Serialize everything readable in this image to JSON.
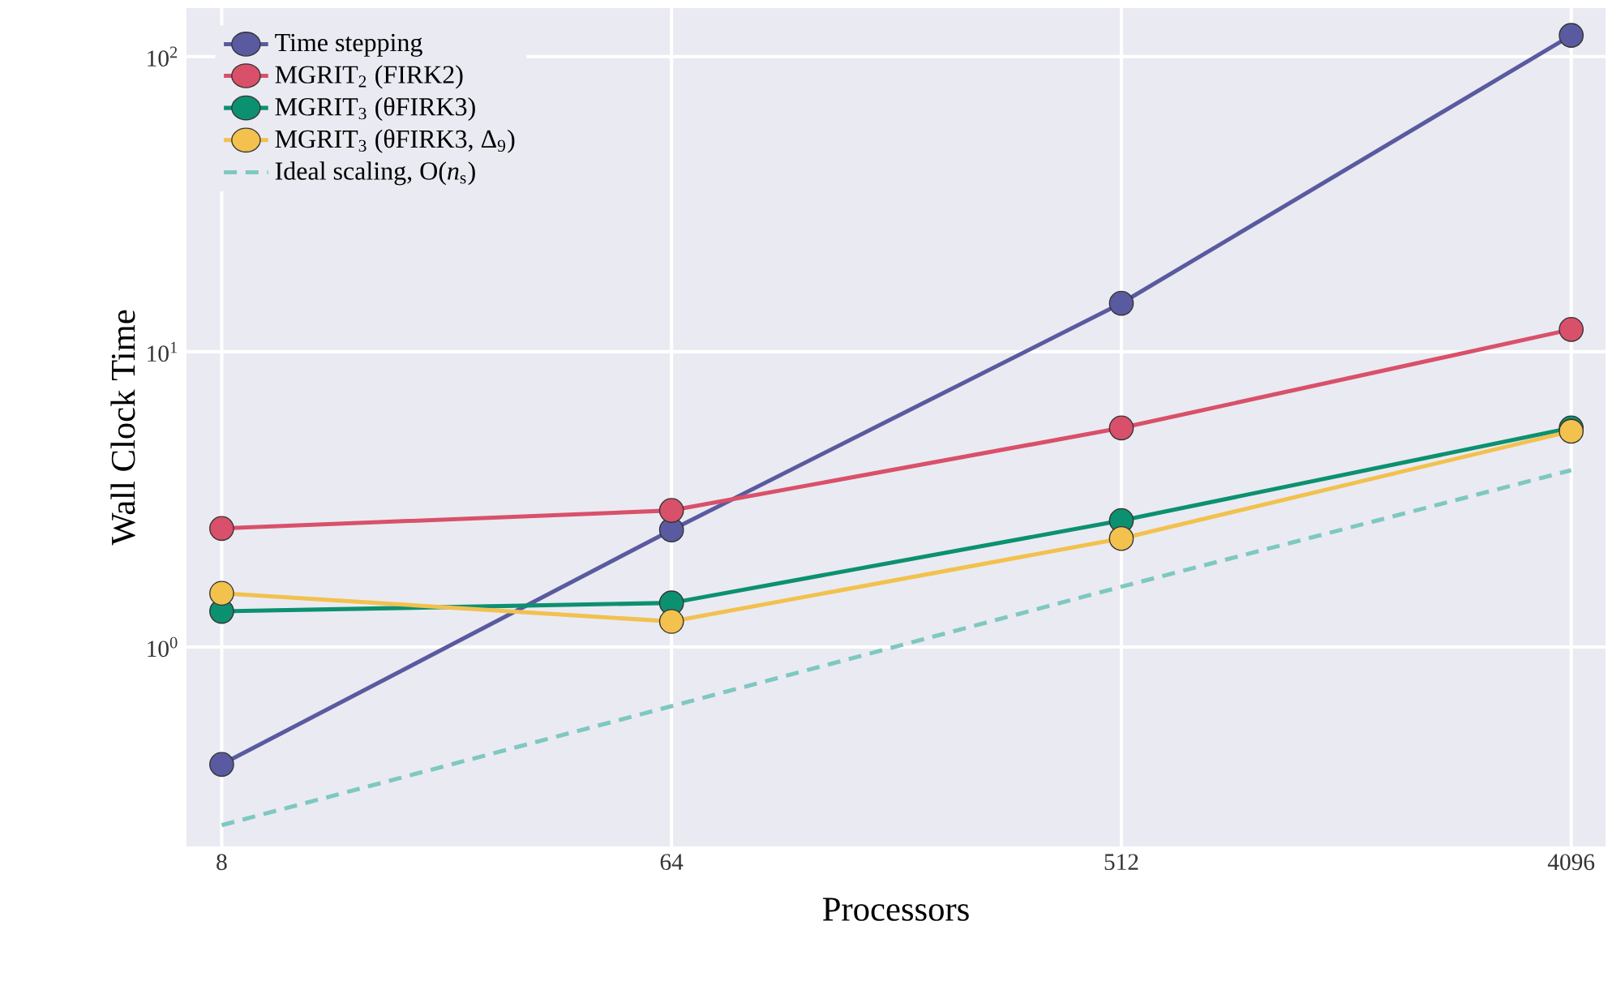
{
  "chart_data": {
    "type": "line",
    "xlabel": "Processors",
    "ylabel": "Wall Clock Time",
    "x": [
      8,
      64,
      512,
      4096
    ],
    "series": [
      {
        "name": "Time stepping",
        "color": "#5a5aa0",
        "values": [
          0.4,
          2.49,
          14.6,
          118
        ]
      },
      {
        "name": "MGRIT$_{2}$ (FIRK2)",
        "color": "#d9506a",
        "values": [
          2.52,
          2.9,
          5.52,
          11.9
        ]
      },
      {
        "name": "MGRIT$_{3}$ (θFIRK3)",
        "color": "#0c9170",
        "values": [
          1.32,
          1.41,
          2.68,
          5.52
        ]
      },
      {
        "name": "MGRIT$_{3}$ (θFIRK3, Δ$_{9}$)",
        "color": "#f2c14e",
        "values": [
          1.52,
          1.22,
          2.33,
          5.38
        ]
      },
      {
        "name": "Ideal scaling, O(*n*$_{s}$)",
        "color": "#7ec8c0",
        "values": [
          0.249,
          0.63,
          1.6,
          3.97
        ],
        "line_style": "dashed",
        "marker": "none"
      }
    ],
    "log": "xy",
    "xlim": [
      6.8,
      4800
    ],
    "ylim": [
      0.211,
      146
    ],
    "xticks": [
      8,
      64,
      512,
      4096
    ],
    "yticks": [
      {
        "value": 1,
        "label": "10$^{0}$"
      },
      {
        "value": 10,
        "label": "10$^{1}$"
      },
      {
        "value": 100,
        "label": "10$^{2}$"
      }
    ],
    "grid": true,
    "legend": "top left",
    "marker": "circle",
    "line_style": "solid"
  }
}
